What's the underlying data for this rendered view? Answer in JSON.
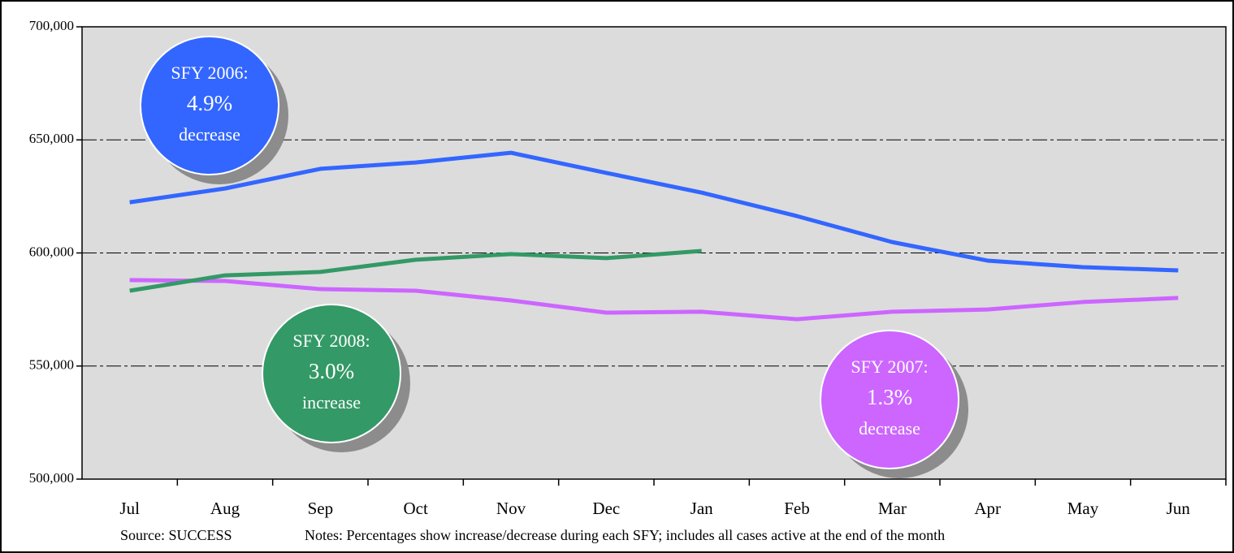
{
  "chart_data": {
    "type": "line",
    "categories": [
      "Jul",
      "Aug",
      "Sep",
      "Oct",
      "Nov",
      "Dec",
      "Jan",
      "Feb",
      "Mar",
      "Apr",
      "May",
      "Jun"
    ],
    "series": [
      {
        "name": "SFY 2006:",
        "change": "4.9%",
        "direction": "decrease",
        "color": "#3366ff",
        "values": [
          622400,
          628500,
          637200,
          640000,
          644300,
          635400,
          626700,
          616300,
          604800,
          596600,
          593700,
          592300
        ]
      },
      {
        "name": "SFY 2007:",
        "change": "1.3%",
        "direction": "decrease",
        "color": "#cc66ff",
        "values": [
          588000,
          587600,
          584000,
          583300,
          579000,
          573600,
          574000,
          570700,
          574000,
          575000,
          578300,
          580100
        ]
      },
      {
        "name": "SFY 2008:",
        "change": "3.0%",
        "direction": "increase",
        "color": "#339966",
        "values": [
          583300,
          590100,
          591600,
          597000,
          599500,
          597700,
          600900,
          null,
          null,
          null,
          null,
          null
        ]
      }
    ],
    "ylim": [
      500000,
      700000
    ],
    "yticks": [
      {
        "value": 500000,
        "label": "500,000"
      },
      {
        "value": 550000,
        "label": "550,000"
      },
      {
        "value": 600000,
        "label": "600,000"
      },
      {
        "value": 650000,
        "label": "650,000"
      },
      {
        "value": 700000,
        "label": "700,000"
      }
    ],
    "grid": true,
    "source": "Source: SUCCESS",
    "notes": "Notes: Percentages show increase/decrease during each SFY;  includes all cases active at the end of the month"
  }
}
